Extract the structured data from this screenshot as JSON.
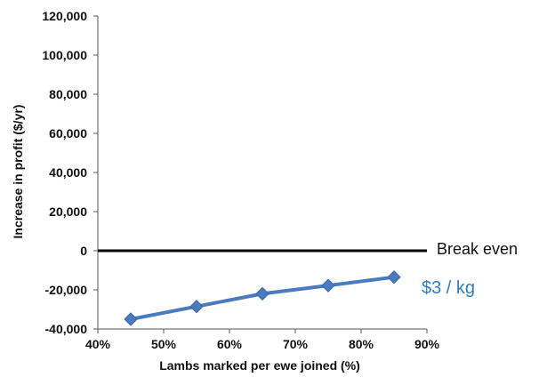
{
  "chart_data": {
    "type": "line",
    "x": [
      45,
      55,
      65,
      75,
      85
    ],
    "series": [
      {
        "values": [
          -35000,
          -28500,
          -22000,
          -17800,
          -13500
        ]
      }
    ],
    "xlabel": "Lambs marked per ewe joined (%)",
    "ylabel": "Increase in profit  ($/yr)",
    "xlim": [
      40,
      90
    ],
    "ylim": [
      -40000,
      120000
    ],
    "x_ticks": [
      "40%",
      "50%",
      "60%",
      "70%",
      "80%",
      "90%"
    ],
    "y_ticks": [
      "120,000",
      "100,000",
      "80,000",
      "60,000",
      "40,000",
      "20,000",
      "0",
      "-20,000",
      "-40,000"
    ],
    "grid": false,
    "reference_line": {
      "y": 0,
      "label": "Break even"
    },
    "series_label": "$3 / kg",
    "series_color": "#4a7ac0",
    "series_label_color": "#2f7dc0"
  }
}
